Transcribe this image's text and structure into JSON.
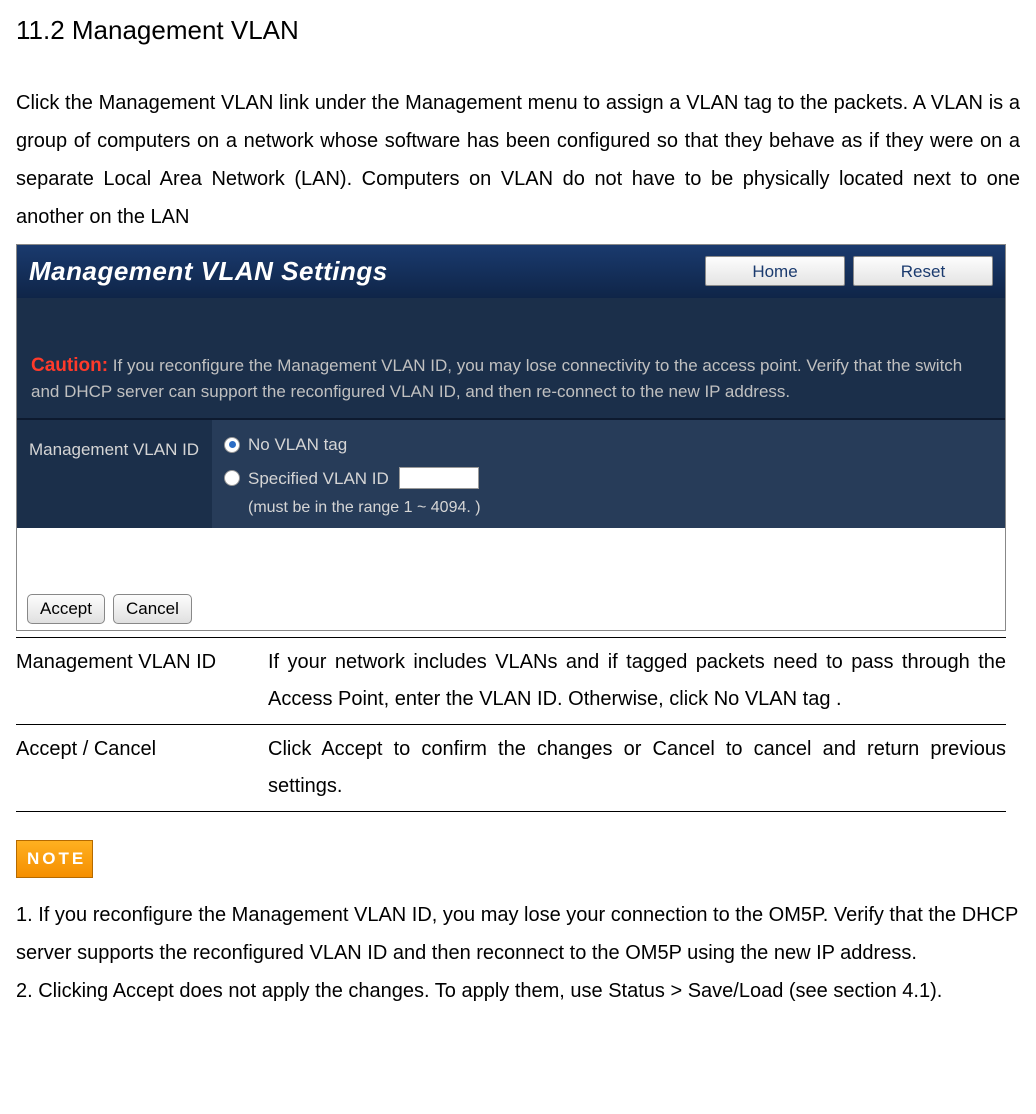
{
  "section_title": "11.2 Management VLAN",
  "intro": "Click the Management VLAN link under the Management menu to assign a VLAN tag to the packets. A VLAN is a group of computers on a network whose software has been configured so that they behave as if they were on a separate Local Area Network (LAN). Computers on VLAN do not have to be physically located next to one another on the LAN",
  "panel": {
    "title": "Management VLAN Settings",
    "home_btn": "Home",
    "reset_btn": "Reset",
    "caution_label": "Caution:",
    "caution_text": " If you reconfigure the Management VLAN ID, you may lose connectivity to the access point. Verify that the switch and DHCP server can support the reconfigured VLAN ID, and then re-connect to the new IP address.",
    "row_label": "Management VLAN ID",
    "opt_none": "No VLAN tag",
    "opt_spec": "Specified VLAN ID",
    "range_note": "(must be in the range 1 ~ 4094. )",
    "accept_btn": "Accept",
    "cancel_btn": "Cancel",
    "selected": "none",
    "vlan_value": "",
    "colors": {
      "header_bg_top": "#1a3a6e",
      "header_bg_bottom": "#0f2548",
      "dark_panel": "#1b2f4a",
      "value_cell": "#273c59",
      "caution_red": "#ff3a2a",
      "note_badge_top": "#ffb020",
      "note_badge_bottom": "#f58f00"
    }
  },
  "definitions": [
    {
      "term": "Management VLAN ID",
      "desc": "If your network includes VLANs and if tagged packets need to pass through  the Access Point,  enter the VLAN ID. Otherwise, click No VLAN tag ."
    },
    {
      "term": "Accept / Cancel",
      "desc": "Click Accept to confirm the changes or Cancel to cancel and return previous settings."
    }
  ],
  "note_label": "NOTE",
  "notes": [
    "1. If you reconfigure the Management VLAN ID, you may lose your connection to the OM5P. Verify that the DHCP server supports the reconfigured VLAN ID and then reconnect to the OM5P using the new IP address.",
    "2. Clicking Accept does not apply the changes. To apply them, use Status > Save/Load (see section 4.1)."
  ]
}
